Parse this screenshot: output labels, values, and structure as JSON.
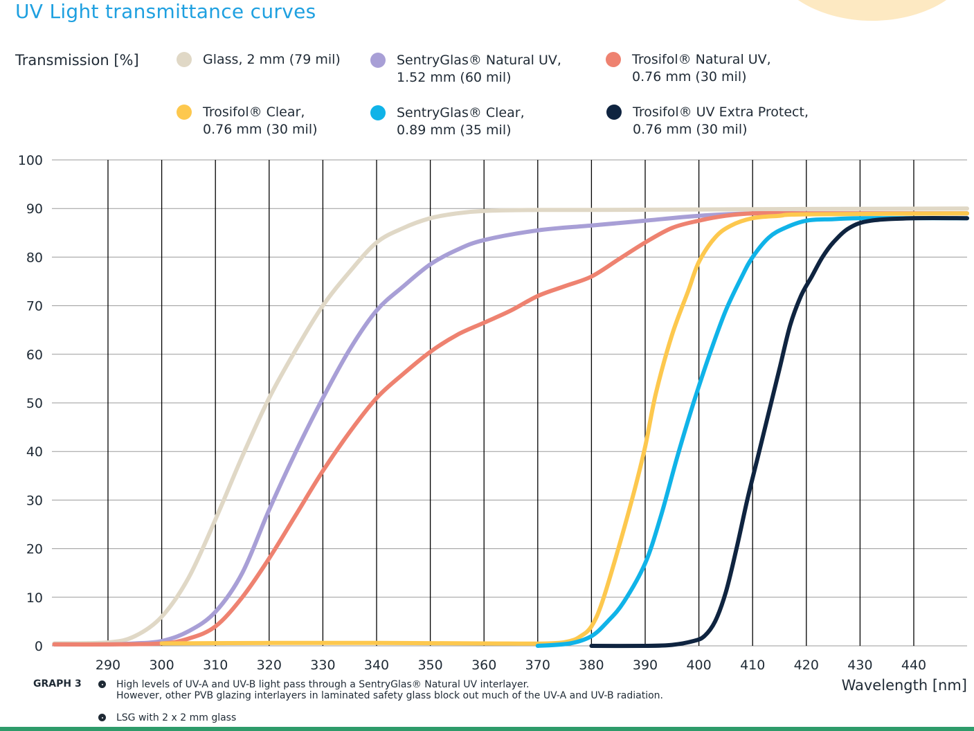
{
  "title": "UV Light transmittance curves",
  "chart_data": {
    "type": "line",
    "title": "UV Light transmittance curves",
    "ylabel": "Transmission [%]",
    "xlabel": "Wavelength [nm]",
    "xlim": [
      280,
      450
    ],
    "ylim": [
      0,
      100
    ],
    "xticks": [
      290,
      300,
      310,
      320,
      330,
      340,
      350,
      360,
      370,
      380,
      390,
      400,
      410,
      420,
      430,
      440
    ],
    "yticks": [
      0,
      10,
      20,
      30,
      40,
      50,
      60,
      70,
      80,
      90,
      100
    ],
    "grid": "vertical lines at x ticks, horizontal lines at y ticks",
    "legend_position": "top",
    "series": [
      {
        "name": "Glass, 2 mm (79 mil)",
        "color": "#e0d8c6",
        "x": [
          280,
          290,
          295,
          300,
          305,
          310,
          315,
          320,
          325,
          330,
          335,
          340,
          345,
          350,
          355,
          360,
          370,
          380,
          400,
          420,
          450
        ],
        "y": [
          0.5,
          0.7,
          2,
          6,
          14,
          26,
          39,
          51,
          61,
          70,
          77,
          83,
          86,
          88,
          89,
          89.5,
          89.7,
          89.7,
          89.8,
          89.9,
          90
        ]
      },
      {
        "name": "SentryGlas® Natural UV,\n1.52 mm (60 mil)",
        "color": "#a89fd6",
        "x": [
          280,
          290,
          295,
          300,
          305,
          310,
          315,
          320,
          325,
          330,
          335,
          340,
          345,
          350,
          355,
          360,
          370,
          380,
          390,
          400,
          410,
          420,
          450
        ],
        "y": [
          0.3,
          0.3,
          0.5,
          1,
          3,
          7,
          15,
          28,
          40,
          51,
          61,
          69,
          74,
          78.5,
          81.5,
          83.5,
          85.5,
          86.5,
          87.5,
          88.5,
          89,
          89,
          89
        ]
      },
      {
        "name": "Trosifol® Natural UV,\n0.76 mm (30 mil)",
        "color": "#ee8270",
        "x": [
          280,
          290,
          300,
          305,
          310,
          315,
          320,
          325,
          330,
          335,
          340,
          345,
          350,
          355,
          360,
          365,
          370,
          375,
          380,
          385,
          390,
          395,
          400,
          405,
          410,
          420,
          450
        ],
        "y": [
          0.3,
          0.3,
          0.5,
          1.5,
          4,
          10,
          18,
          27,
          36,
          44,
          51,
          56,
          60.5,
          64,
          66.5,
          69,
          72,
          74,
          76,
          79.5,
          83,
          86,
          87.5,
          88.5,
          89,
          89,
          89
        ]
      },
      {
        "name": "Trosifol® Clear,\n0.76 mm (30 mil)",
        "color": "#fdc84e",
        "x": [
          300,
          320,
          340,
          360,
          372,
          376,
          378,
          380,
          382,
          385,
          388,
          390,
          392,
          395,
          398,
          400,
          403,
          406,
          410,
          415,
          420,
          450
        ],
        "y": [
          0.5,
          0.6,
          0.6,
          0.5,
          0.5,
          1,
          2,
          4,
          9,
          20,
          32,
          41,
          52,
          64,
          73,
          79,
          84,
          86.5,
          88,
          88.5,
          88.8,
          89
        ]
      },
      {
        "name": "SentryGlas® Clear,\n0.89 mm (35 mil)",
        "color": "#10b3e8",
        "x": [
          370,
          376,
          380,
          383,
          386,
          390,
          393,
          396,
          399,
          402,
          405,
          408,
          410,
          413,
          416,
          420,
          425,
          430,
          450
        ],
        "y": [
          0,
          0.5,
          2,
          5,
          9,
          17,
          27,
          39,
          50,
          60,
          69,
          76,
          80,
          84,
          86,
          87.5,
          87.8,
          88,
          88
        ]
      },
      {
        "name": "Trosifol® UV Extra Protect,\n0.76 mm (30 mil)",
        "color": "#0f2440",
        "x": [
          380,
          390,
          395,
          399,
          401,
          403,
          405,
          407,
          409,
          411,
          413,
          415,
          417,
          419,
          421,
          423,
          425,
          428,
          432,
          440,
          450
        ],
        "y": [
          0,
          0,
          0.2,
          1,
          2,
          5,
          11,
          20,
          30,
          39,
          48,
          57,
          66,
          72,
          76,
          80,
          83,
          86,
          87.5,
          88,
          88
        ]
      }
    ]
  },
  "footer": {
    "graph_label": "GRAPH 3",
    "note1": "High levels of UV-A and UV-B light pass through a SentryGlas® Natural UV interlayer.\nHowever, other PVB glazing interlayers in laminated safety glass block out much of the UV-A and UV-B radiation.",
    "note2": "LSG with 2 x 2 mm glass"
  }
}
